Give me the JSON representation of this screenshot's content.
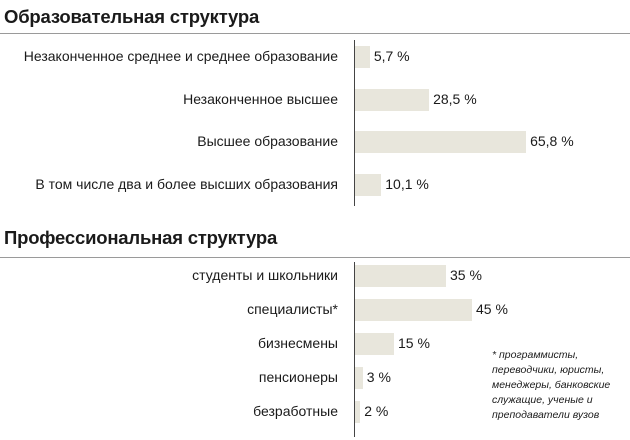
{
  "chart_data": [
    {
      "type": "bar",
      "orientation": "horizontal",
      "title": "Образовательная структура",
      "categories": [
        "Незаконченное среднее и среднее образование",
        "Незаконченное высшее",
        "Высшее образование",
        "В том числе два и более высших образования"
      ],
      "values": [
        5.7,
        28.5,
        65.8,
        10.1
      ],
      "value_labels": [
        "5,7 %",
        "28,5 %",
        "65,8 %",
        "10,1 %"
      ],
      "unit": "%",
      "xlim": [
        0,
        100
      ]
    },
    {
      "type": "bar",
      "orientation": "horizontal",
      "title": "Профессиональная структура",
      "categories": [
        "студенты и школьники",
        "специалисты*",
        "бизнесмены",
        "пенсионеры",
        "безработные"
      ],
      "values": [
        35,
        45,
        15,
        3,
        2
      ],
      "value_labels": [
        "35 %",
        "45 %",
        "15 %",
        "3 %",
        "2 %"
      ],
      "unit": "%",
      "xlim": [
        0,
        100
      ],
      "footnote": "* программисты, переводчики, юристы, менеджеры, банковские служащие, ученые и преподаватели вузов"
    }
  ],
  "colors": {
    "bar": "#e8e6dc",
    "axis": "#444444",
    "divider": "#9a9a9a"
  }
}
